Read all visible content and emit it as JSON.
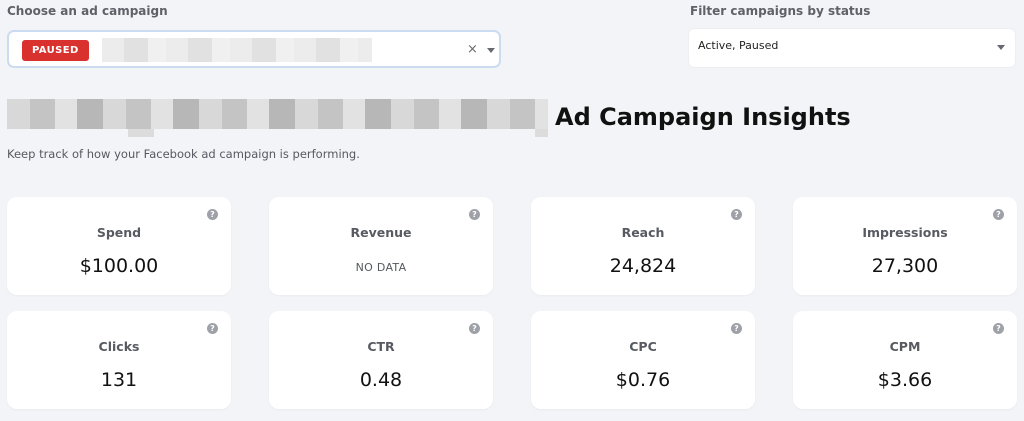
{
  "campaign_select": {
    "label": "Choose an ad campaign",
    "badge": "PAUSED",
    "clear_glyph": "×"
  },
  "status_filter": {
    "label": "Filter campaigns by status",
    "value": "Active, Paused"
  },
  "header": {
    "title": "Ad Campaign Insights",
    "subtitle": "Keep track of how your Facebook ad campaign is performing."
  },
  "help_glyph": "?",
  "metrics": [
    {
      "label": "Spend",
      "value": "$100.00"
    },
    {
      "label": "Revenue",
      "value": "NO DATA"
    },
    {
      "label": "Reach",
      "value": "24,824"
    },
    {
      "label": "Impressions",
      "value": "27,300"
    },
    {
      "label": "Clicks",
      "value": "131"
    },
    {
      "label": "CTR",
      "value": "0.48"
    },
    {
      "label": "CPC",
      "value": "$0.76"
    },
    {
      "label": "CPM",
      "value": "$3.66"
    }
  ],
  "colors": {
    "background": "#f3f4f7",
    "paused_badge": "#d9312e",
    "card": "#ffffff"
  }
}
